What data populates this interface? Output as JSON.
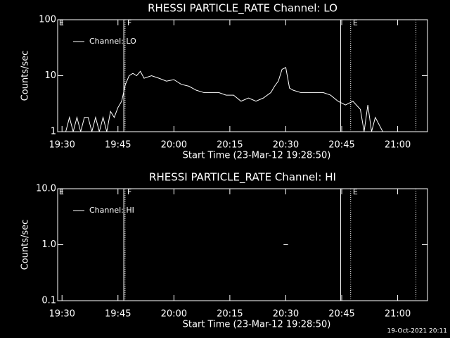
{
  "chart_data": [
    {
      "type": "line",
      "title": "RHESSI PARTICLE_RATE Channel: LO",
      "xlabel": "Start Time (23-Mar-12 19:28:50)",
      "ylabel": "Counts/sec",
      "log_y": true,
      "legend": "upper left",
      "color": "#ffffff",
      "xlim": [
        1168.83,
        1268
      ],
      "ylim": [
        1,
        100
      ],
      "xticks": [
        {
          "value": 1170,
          "label": "19:30"
        },
        {
          "value": 1185,
          "label": "19:45"
        },
        {
          "value": 1200,
          "label": "20:00"
        },
        {
          "value": 1215,
          "label": "20:15"
        },
        {
          "value": 1230,
          "label": "20:30"
        },
        {
          "value": 1245,
          "label": "20:45"
        },
        {
          "value": 1260,
          "label": "21:00"
        }
      ],
      "yticks": [
        1,
        10,
        100
      ],
      "vlines": [
        {
          "x": 1186.56,
          "style": "solid"
        },
        {
          "x": 1186.9,
          "style": "dotted"
        },
        {
          "x": 1244.7,
          "style": "solid"
        },
        {
          "x": 1247.4,
          "style": "dotted"
        },
        {
          "x": 1264.9,
          "style": "dotted"
        }
      ],
      "flags": [
        {
          "x": 1169,
          "label": "E"
        },
        {
          "x": 1187.3,
          "label": "F"
        },
        {
          "x": 1247.8,
          "label": "E"
        }
      ],
      "series": [
        {
          "name": "Channel: LO",
          "color": "#ffffff",
          "x": [
            1171,
            1172,
            1173,
            1174,
            1175,
            1176,
            1177,
            1178,
            1179,
            1180,
            1181,
            1182,
            1183,
            1184,
            1185,
            1186,
            1187,
            1188,
            1189,
            1190,
            1191,
            1192,
            1194,
            1196,
            1198,
            1200,
            1202,
            1204,
            1206,
            1208,
            1210,
            1212,
            1214,
            1216,
            1218,
            1220,
            1222,
            1224,
            1226,
            1227,
            1228,
            1229,
            1230,
            1231,
            1232,
            1234,
            1236,
            1238,
            1240,
            1242,
            1244,
            1246,
            1248,
            1250,
            1251,
            1252,
            1253,
            1254,
            1256
          ],
          "values": [
            1,
            1.8,
            1,
            1.8,
            1,
            1.8,
            1.8,
            1,
            1.8,
            1,
            1.8,
            1,
            2.3,
            1.8,
            2.7,
            3.5,
            7,
            10,
            11,
            10,
            12,
            9,
            10,
            9,
            8,
            8.5,
            7,
            6.5,
            5.5,
            5,
            5,
            5,
            4.5,
            4.5,
            3.5,
            4,
            3.5,
            4,
            5,
            6.5,
            8,
            13,
            14,
            6,
            5.5,
            5,
            5,
            5,
            5,
            4.5,
            3.5,
            3,
            3.5,
            2.5,
            1,
            3,
            1,
            1.8,
            1
          ]
        }
      ]
    },
    {
      "type": "line",
      "title": "RHESSI PARTICLE_RATE Channel: HI",
      "xlabel": "Start Time (23-Mar-12 19:28:50)",
      "ylabel": "Counts/sec",
      "log_y": true,
      "legend": "upper left",
      "color": "#ffffff",
      "xlim": [
        1168.83,
        1268
      ],
      "ylim": [
        0.1,
        10
      ],
      "xticks": [
        {
          "value": 1170,
          "label": "19:30"
        },
        {
          "value": 1185,
          "label": "19:45"
        },
        {
          "value": 1200,
          "label": "20:00"
        },
        {
          "value": 1215,
          "label": "20:15"
        },
        {
          "value": 1230,
          "label": "20:30"
        },
        {
          "value": 1245,
          "label": "20:45"
        },
        {
          "value": 1260,
          "label": "21:00"
        }
      ],
      "yticks": [
        0.1,
        {
          "value": 1,
          "label": "1.0"
        },
        {
          "value": 10,
          "label": "10.0"
        }
      ],
      "vlines": [
        {
          "x": 1186.56,
          "style": "solid"
        },
        {
          "x": 1186.9,
          "style": "dotted"
        },
        {
          "x": 1244.7,
          "style": "solid"
        },
        {
          "x": 1247.4,
          "style": "dotted"
        },
        {
          "x": 1264.9,
          "style": "dotted"
        }
      ],
      "flags": [
        {
          "x": 1169,
          "label": "E"
        },
        {
          "x": 1187.3,
          "label": "F"
        },
        {
          "x": 1247.8,
          "label": "E"
        }
      ],
      "series": [
        {
          "name": "Channel: HI",
          "color": "#ffffff",
          "x": [
            1229.4,
            1230.6
          ],
          "values": [
            1,
            1
          ]
        }
      ]
    }
  ],
  "footer": "19-Oct-2021 20:11"
}
